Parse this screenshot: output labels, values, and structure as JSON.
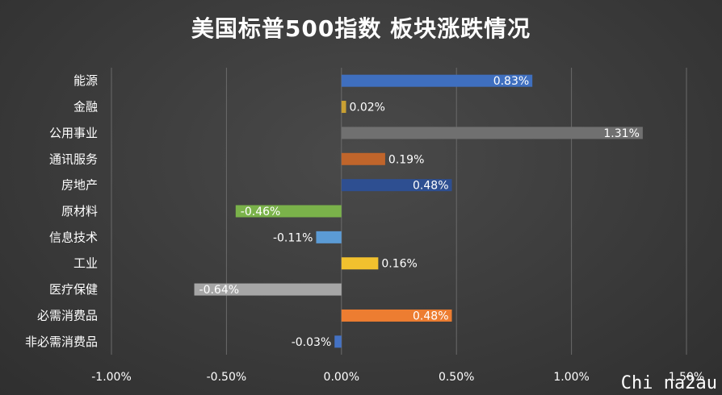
{
  "chart_data": {
    "type": "bar",
    "orientation": "horizontal",
    "title": "美国标普500指数 板块涨跌情况",
    "categories": [
      "能源",
      "金融",
      "公用事业",
      "通讯服务",
      "房地产",
      "原材料",
      "信息技术",
      "工业",
      "医疗保健",
      "必需消费品",
      "非必需消费品"
    ],
    "values": [
      0.83,
      0.02,
      1.31,
      0.19,
      0.48,
      -0.46,
      -0.11,
      0.16,
      -0.64,
      0.48,
      -0.03
    ],
    "value_labels": [
      "0.83%",
      "0.02%",
      "1.31%",
      "0.19%",
      "0.48%",
      "-0.46%",
      "-0.11%",
      "0.16%",
      "-0.64%",
      "0.48%",
      "-0.03%"
    ],
    "bar_colors": [
      "#3f6fbf",
      "#c9a032",
      "#707070",
      "#c0652b",
      "#2e4f91",
      "#7ab24a",
      "#5b9bd5",
      "#f2c12e",
      "#a6a6a6",
      "#ed7d31",
      "#4472c4"
    ],
    "xlim": [
      -1.0,
      1.5
    ],
    "x_ticks": [
      -1.0,
      -0.5,
      0.0,
      0.5,
      1.0,
      1.5
    ],
    "x_tick_labels": [
      "-1.00%",
      "-0.50%",
      "0.00%",
      "0.50%",
      "1.00%",
      "1.50%"
    ],
    "grid": "vertical",
    "legend": "none"
  },
  "watermark": "Chi na2au"
}
